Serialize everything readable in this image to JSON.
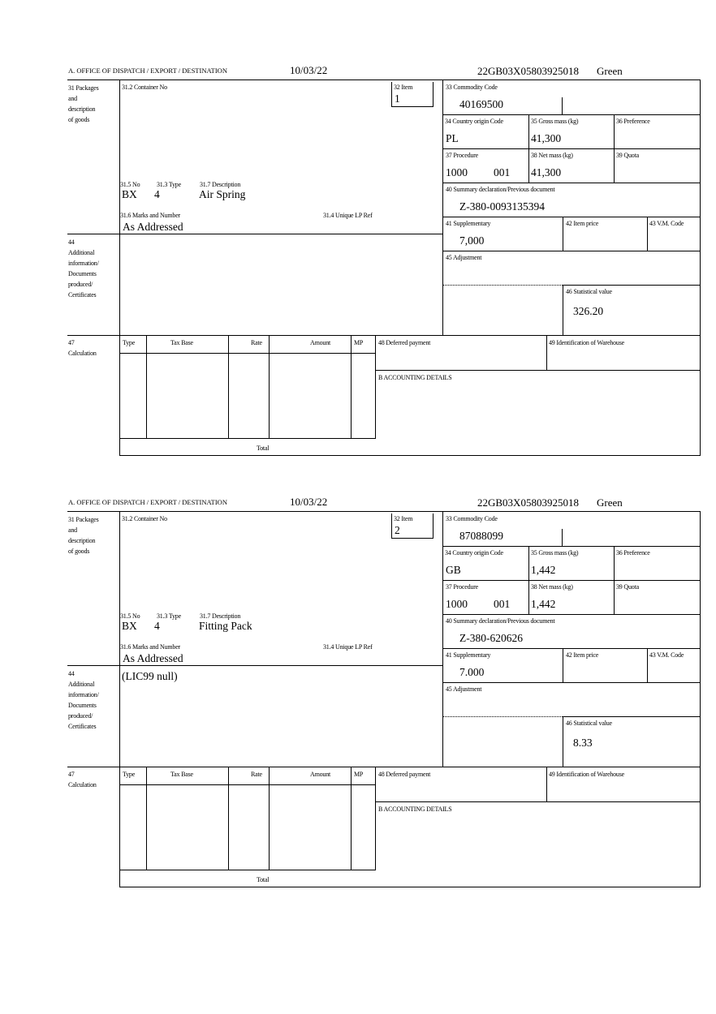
{
  "forms": [
    {
      "office_label": "A. OFFICE OF DISPATCH / EXPORT / DESTINATION",
      "date": "10/03/22",
      "reference": "22GB03X05803925018",
      "route": "Green",
      "labels": {
        "packages": [
          "31 Packages",
          "and",
          "description",
          "of goods"
        ],
        "container_no": "31.2 Container No",
        "no": "31.5 No",
        "type": "31.3 Type",
        "description": "31.7 Description",
        "marks": "31.6 Marks and Number",
        "unique_lp_ref": "31.4 Unique LP Ref",
        "item": "32 Item",
        "commodity_code": "33 Commodity Code",
        "country_origin": "34 Country origin Code",
        "gross_mass": "35 Gross mass (kg)",
        "preference": "36 Preference",
        "procedure": "37 Procedure",
        "net_mass": "38 Net mass (kg)",
        "quota": "39 Quota",
        "summary_declaration": "40 Summary declaration/Previous document",
        "supplementary": "41 Supplementary",
        "item_price": "42 Item price",
        "vm_code": "43 V.M. Code",
        "additional_info": [
          "44",
          "Additional",
          "information/",
          "Documents",
          "produced/",
          "Certificates"
        ],
        "adjustment": "45 Adjustment",
        "statistical_value": "46 Statistical value",
        "calculation": [
          "47",
          "Calculation"
        ],
        "calc_type": "Type",
        "calc_tax_base": "Tax Base",
        "calc_rate": "Rate",
        "calc_amount": "Amount",
        "calc_mp": "MP",
        "deferred_payment": "48 Deferred payment",
        "warehouse": "49 Identification of Warehouse",
        "accounting": "B ACCOUNTING DETAILS",
        "total": "Total"
      },
      "values": {
        "no": "BX",
        "type": "4",
        "description": "Air Spring",
        "marks": "As Addressed",
        "item": "1",
        "commodity_code": "40169500",
        "country_origin": "PL",
        "gross_mass": "41,300",
        "procedure": "1000",
        "procedure_extra": "001",
        "net_mass": "41,300",
        "summary_declaration": "Z-380-0093135394",
        "supplementary": "7,000",
        "additional_info": "",
        "statistical_value": "326.20"
      }
    },
    {
      "office_label": "A. OFFICE OF DISPATCH / EXPORT / DESTINATION",
      "date": "10/03/22",
      "reference": "22GB03X05803925018",
      "route": "Green",
      "labels": {
        "packages": [
          "31 Packages",
          "and",
          "description",
          "of goods"
        ],
        "container_no": "31.2 Container No",
        "no": "31.5 No",
        "type": "31.3 Type",
        "description": "31.7 Description",
        "marks": "31.6 Marks and Number",
        "unique_lp_ref": "31.4 Unique LP Ref",
        "item": "32 Item",
        "commodity_code": "33 Commodity Code",
        "country_origin": "34 Country origin Code",
        "gross_mass": "35 Gross mass (kg)",
        "preference": "36 Preference",
        "procedure": "37 Procedure",
        "net_mass": "38 Net mass (kg)",
        "quota": "39 Quota",
        "summary_declaration": "40 Summary declaration/Previous document",
        "supplementary": "41 Supplementary",
        "item_price": "42 Item price",
        "vm_code": "43 V.M. Code",
        "additional_info": [
          "44",
          "Additional",
          "information/",
          "Documents",
          "produced/",
          "Certificates"
        ],
        "adjustment": "45 Adjustment",
        "statistical_value": "46 Statistical value",
        "calculation": [
          "47",
          "Calculation"
        ],
        "calc_type": "Type",
        "calc_tax_base": "Tax Base",
        "calc_rate": "Rate",
        "calc_amount": "Amount",
        "calc_mp": "MP",
        "deferred_payment": "48 Deferred payment",
        "warehouse": "49 Identification of Warehouse",
        "accounting": "B ACCOUNTING DETAILS",
        "total": "Total"
      },
      "values": {
        "no": "BX",
        "type": "4",
        "description": "Fitting Pack",
        "marks": "As Addressed",
        "item": "2",
        "commodity_code": "87088099",
        "country_origin": "GB",
        "gross_mass": "1,442",
        "procedure": "1000",
        "procedure_extra": "001",
        "net_mass": "1,442",
        "summary_declaration": "Z-380-620626",
        "supplementary": "7.000",
        "additional_info": "(LIC99 null)",
        "statistical_value": "8.33"
      }
    }
  ]
}
